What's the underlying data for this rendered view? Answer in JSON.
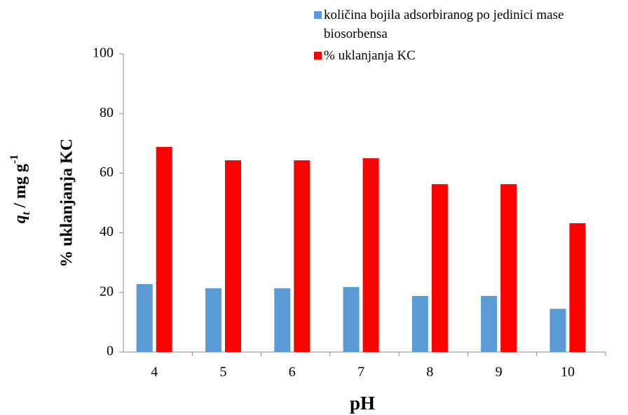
{
  "chart_data": {
    "type": "bar",
    "y_label_parts": [
      "q",
      "t",
      " / mg g",
      "-1"
    ],
    "y_label2": "% uklanjanja  KC",
    "x_label": "pH",
    "categories": [
      "4",
      "5",
      "6",
      "7",
      "8",
      "9",
      "10"
    ],
    "series": [
      {
        "name": "količina bojila adsorbiranog po jedinici mase biosorbensa",
        "color": "#5b9bd5",
        "values": [
          22.8,
          21.4,
          21.4,
          21.8,
          18.8,
          18.8,
          14.5
        ]
      },
      {
        "name": "% uklanjanja KC",
        "color": "#ff0000",
        "values": [
          68.8,
          64.3,
          64.3,
          65.0,
          56.3,
          56.3,
          43.2
        ]
      }
    ],
    "ylim": [
      0,
      100
    ],
    "yticks": [
      0,
      20,
      40,
      60,
      80,
      100
    ],
    "grid": false,
    "legend": "top-right"
  }
}
